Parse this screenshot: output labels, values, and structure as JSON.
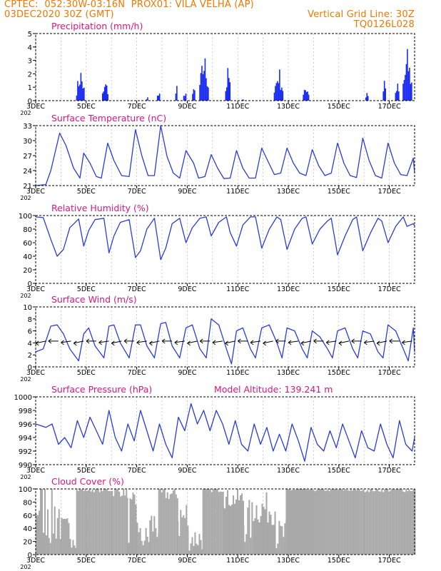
{
  "header": {
    "line1_left": "CPTEC:  052:30W-03:16N  PROX01: VILA VELHA (AP)",
    "line2_left": "03DEC2020 30Z (GMT)",
    "line2_right": "Vertical Grid Line: 30Z",
    "line3_right": "TQ0126L028"
  },
  "colors": {
    "header": "#f07800",
    "title": "#e0147f",
    "line": "#2a3ce0",
    "bar": "#1a2cf0",
    "cloud": "#a9a9a9",
    "grid": "#b0b0b0"
  },
  "x_axis": {
    "ticks": [
      "3DEC",
      "5DEC",
      "7DEC",
      "9DEC",
      "11DEC",
      "13DEC",
      "15DEC",
      "17DEC"
    ],
    "overlap_label": "202"
  },
  "chart_data": [
    {
      "type": "bar",
      "title": "Precipitation (mm/h)",
      "ylim": [
        0,
        5
      ],
      "yticks": [
        "0",
        "1",
        "2",
        "3",
        "4",
        "5"
      ],
      "events": [
        {
          "day": 4.75,
          "peak": 2.7,
          "width": 0.3
        },
        {
          "day": 5.75,
          "peak": 1.6,
          "width": 0.25
        },
        {
          "day": 7.4,
          "peak": 0.4,
          "width": 0.06
        },
        {
          "day": 7.85,
          "peak": 1.1,
          "width": 0.1
        },
        {
          "day": 8.55,
          "peak": 1.9,
          "width": 0.05
        },
        {
          "day": 8.9,
          "peak": 1.0,
          "width": 0.12
        },
        {
          "day": 9.25,
          "peak": 1.3,
          "width": 0.12
        },
        {
          "day": 9.65,
          "peak": 4.0,
          "width": 0.35
        },
        {
          "day": 10.6,
          "peak": 2.8,
          "width": 0.2
        },
        {
          "day": 11.2,
          "peak": 0.2,
          "width": 0.08
        },
        {
          "day": 12.6,
          "peak": 2.8,
          "width": 0.35
        },
        {
          "day": 13.7,
          "peak": 1.4,
          "width": 0.25
        },
        {
          "day": 16.1,
          "peak": 1.0,
          "width": 0.1
        },
        {
          "day": 16.8,
          "peak": 2.4,
          "width": 0.12
        },
        {
          "day": 17.3,
          "peak": 1.5,
          "width": 0.15
        },
        {
          "day": 17.7,
          "peak": 4.1,
          "width": 0.35
        }
      ]
    },
    {
      "type": "line",
      "title": "Surface Temperature (nC)",
      "ylim": [
        21,
        33
      ],
      "yticks": [
        "21",
        "24",
        "27",
        "30",
        "33"
      ],
      "series": [
        {
          "x": [
            3,
            3.4,
            3.6,
            3.95,
            4.2,
            4.5,
            4.75,
            4.9,
            5.15,
            5.4,
            5.6,
            5.85,
            6.1,
            6.4,
            6.7,
            6.95,
            7.2,
            7.45,
            7.7,
            7.95,
            8.2,
            8.45,
            8.7,
            8.95,
            9.25,
            9.45,
            9.7,
            9.95,
            10.2,
            10.45,
            10.7,
            10.95,
            11.2,
            11.45,
            11.7,
            11.95,
            12.2,
            12.45,
            12.7,
            12.95,
            13.2,
            13.45,
            13.7,
            13.95,
            14.2,
            14.45,
            14.7,
            14.95,
            15.2,
            15.45,
            15.7,
            15.95,
            16.2,
            16.45,
            16.7,
            16.95,
            17.2,
            17.45,
            17.7,
            17.95,
            18
          ],
          "y": [
            21,
            21.2,
            24,
            31.5,
            29,
            24.5,
            22.5,
            27.5,
            25.5,
            22.8,
            22.5,
            29.5,
            26,
            23,
            22.8,
            32.2,
            27,
            23,
            23,
            33,
            26.8,
            23.5,
            22.5,
            28,
            25.5,
            22.5,
            22.8,
            27.2,
            24.5,
            22.4,
            22.5,
            28,
            24.5,
            22.5,
            22.5,
            28.5,
            25.8,
            23.2,
            23.5,
            28.5,
            25.5,
            23.5,
            23,
            28.2,
            25,
            23,
            23.5,
            29.5,
            25.5,
            23,
            22.6,
            30.5,
            26,
            23,
            22.5,
            29.5,
            25.5,
            23.2,
            23,
            26.5,
            23.5
          ]
        }
      ]
    },
    {
      "type": "line",
      "title": "Relative Humidity (%)",
      "ylim": [
        0,
        100
      ],
      "yticks": [
        "0",
        "20",
        "40",
        "60",
        "80",
        "100"
      ],
      "series": [
        {
          "x": [
            3,
            3.3,
            3.6,
            3.85,
            4.1,
            4.35,
            4.7,
            4.9,
            5.1,
            5.35,
            5.7,
            5.9,
            6.1,
            6.35,
            6.7,
            6.95,
            7.15,
            7.4,
            7.7,
            7.95,
            8.15,
            8.4,
            8.7,
            8.95,
            9.2,
            9.5,
            9.75,
            9.95,
            10.25,
            10.55,
            10.7,
            10.95,
            11.2,
            11.5,
            11.7,
            11.95,
            12.25,
            12.55,
            12.7,
            12.95,
            13.25,
            13.55,
            13.7,
            13.95,
            14.25,
            14.55,
            14.7,
            14.95,
            15.25,
            15.55,
            15.7,
            15.95,
            16.25,
            16.55,
            16.7,
            16.95,
            17.25,
            17.55,
            17.7,
            17.95,
            18
          ],
          "y": [
            98,
            97,
            65,
            40,
            50,
            82,
            95,
            55,
            78,
            94,
            96,
            45,
            70,
            90,
            94,
            38,
            48,
            80,
            96,
            35,
            52,
            88,
            96,
            60,
            82,
            96,
            98,
            70,
            90,
            98,
            75,
            55,
            86,
            98,
            98,
            52,
            80,
            98,
            94,
            50,
            80,
            96,
            98,
            58,
            80,
            92,
            96,
            42,
            70,
            94,
            98,
            48,
            74,
            96,
            92,
            60,
            84,
            98,
            84,
            88,
            85
          ]
        }
      ]
    },
    {
      "type": "line",
      "title": "Surface Wind (m/s)",
      "ylim": [
        0,
        10
      ],
      "yticks": [
        "0",
        "2",
        "4",
        "6",
        "8",
        "10"
      ],
      "series": [
        {
          "x": [
            3,
            3.3,
            3.6,
            3.85,
            4.1,
            4.35,
            4.7,
            4.9,
            5.1,
            5.35,
            5.7,
            5.9,
            6.1,
            6.35,
            6.7,
            6.95,
            7.15,
            7.4,
            7.7,
            7.95,
            8.15,
            8.4,
            8.7,
            8.95,
            9.2,
            9.5,
            9.75,
            9.95,
            10.25,
            10.55,
            10.75,
            10.95,
            11.2,
            11.5,
            11.7,
            11.95,
            12.25,
            12.55,
            12.75,
            12.95,
            13.25,
            13.55,
            13.75,
            13.95,
            14.25,
            14.55,
            14.75,
            14.95,
            15.25,
            15.55,
            15.75,
            15.95,
            16.25,
            16.55,
            16.75,
            16.95,
            17.25,
            17.55,
            17.75,
            17.95,
            18
          ],
          "y": [
            2.5,
            3,
            6.8,
            7,
            5.5,
            3,
            1,
            5.5,
            6.5,
            3.5,
            1.5,
            6.8,
            7,
            4,
            1.5,
            7,
            7,
            3.5,
            1.5,
            7.2,
            7.4,
            3.5,
            1.5,
            6.5,
            7,
            3,
            1.5,
            8,
            7,
            3,
            0.5,
            6,
            6.5,
            3,
            1.5,
            6.5,
            7,
            4,
            1.5,
            6.5,
            6,
            3,
            1.5,
            6,
            5,
            3,
            1.5,
            6,
            6.5,
            3,
            1.5,
            6,
            5.5,
            2.5,
            1.5,
            7,
            6,
            3,
            1,
            6.5,
            2.5
          ]
        }
      ],
      "arrows": [
        3.4,
        3.9,
        4.4,
        4.9,
        5.4,
        5.9,
        6.4,
        6.9,
        7.4,
        7.9,
        8.4,
        8.9,
        9.4,
        9.9,
        10.4,
        10.9,
        11.4,
        11.9,
        12.4,
        12.9,
        13.4,
        13.9,
        14.4,
        14.9,
        15.4,
        15.9,
        16.4,
        16.9,
        17.4,
        17.9
      ]
    },
    {
      "type": "line",
      "title": "Surface Pressure (hPa)",
      "annotation": "Model Altitude: 139.241 m",
      "ylim": [
        990,
        1000
      ],
      "yticks": [
        "990",
        "992",
        "994",
        "996",
        "998",
        "1000"
      ],
      "series": [
        {
          "x": [
            3,
            3.4,
            3.65,
            3.9,
            4.15,
            4.4,
            4.65,
            4.9,
            5.15,
            5.4,
            5.65,
            5.9,
            6.15,
            6.4,
            6.65,
            6.9,
            7.15,
            7.4,
            7.65,
            7.9,
            8.15,
            8.4,
            8.65,
            8.9,
            9.15,
            9.4,
            9.65,
            9.9,
            10.15,
            10.4,
            10.65,
            10.9,
            11.15,
            11.4,
            11.65,
            11.9,
            12.15,
            12.4,
            12.65,
            12.9,
            13.15,
            13.4,
            13.65,
            13.9,
            14.15,
            14.4,
            14.65,
            14.9,
            15.15,
            15.4,
            15.65,
            15.9,
            16.15,
            16.4,
            16.65,
            16.9,
            17.15,
            17.4,
            17.65,
            17.9,
            18
          ],
          "y": [
            996,
            995.5,
            996,
            993,
            994,
            992.5,
            996.5,
            994,
            997,
            995,
            993,
            998,
            994,
            992,
            996,
            993.5,
            998,
            995,
            992,
            996,
            993,
            991,
            997,
            995,
            999,
            996,
            998,
            995,
            998,
            996,
            993,
            996.5,
            993,
            992,
            996,
            993,
            995.5,
            992,
            994.5,
            992,
            996,
            993.5,
            990.5,
            995.5,
            993,
            992,
            995,
            992.5,
            996,
            993.5,
            991,
            995,
            992.5,
            992,
            996,
            993,
            991,
            996.5,
            993,
            992,
            994
          ]
        }
      ]
    },
    {
      "type": "bar",
      "title": "Cloud Cover (%)",
      "ylim": [
        0,
        100
      ],
      "yticks": [
        "0",
        "20",
        "40",
        "60",
        "80",
        "100"
      ],
      "segments": [
        {
          "from": 3.0,
          "to": 3.5,
          "value": 80,
          "jitter": 60
        },
        {
          "from": 3.5,
          "to": 4.0,
          "value": 60,
          "jitter": 50
        },
        {
          "from": 4.0,
          "to": 4.6,
          "value": 35,
          "jitter": 25
        },
        {
          "from": 4.6,
          "to": 6.0,
          "value": 99,
          "jitter": 4
        },
        {
          "from": 6.0,
          "to": 6.6,
          "value": 96,
          "jitter": 8
        },
        {
          "from": 6.6,
          "to": 7.0,
          "value": 55,
          "jitter": 40
        },
        {
          "from": 7.0,
          "to": 7.5,
          "value": 25,
          "jitter": 20
        },
        {
          "from": 7.5,
          "to": 7.85,
          "value": 45,
          "jitter": 30
        },
        {
          "from": 7.85,
          "to": 8.6,
          "value": 92,
          "jitter": 10
        },
        {
          "from": 8.6,
          "to": 9.0,
          "value": 55,
          "jitter": 40
        },
        {
          "from": 9.0,
          "to": 9.6,
          "value": 25,
          "jitter": 20
        },
        {
          "from": 9.6,
          "to": 10.4,
          "value": 99,
          "jitter": 4
        },
        {
          "from": 10.4,
          "to": 11.2,
          "value": 85,
          "jitter": 15
        },
        {
          "from": 11.2,
          "to": 11.6,
          "value": 50,
          "jitter": 35
        },
        {
          "from": 11.6,
          "to": 12.5,
          "value": 70,
          "jitter": 25
        },
        {
          "from": 12.5,
          "to": 12.9,
          "value": 30,
          "jitter": 25
        },
        {
          "from": 12.9,
          "to": 16.0,
          "value": 99,
          "jitter": 3
        },
        {
          "from": 16.0,
          "to": 18.0,
          "value": 99,
          "jitter": 4
        }
      ]
    }
  ]
}
